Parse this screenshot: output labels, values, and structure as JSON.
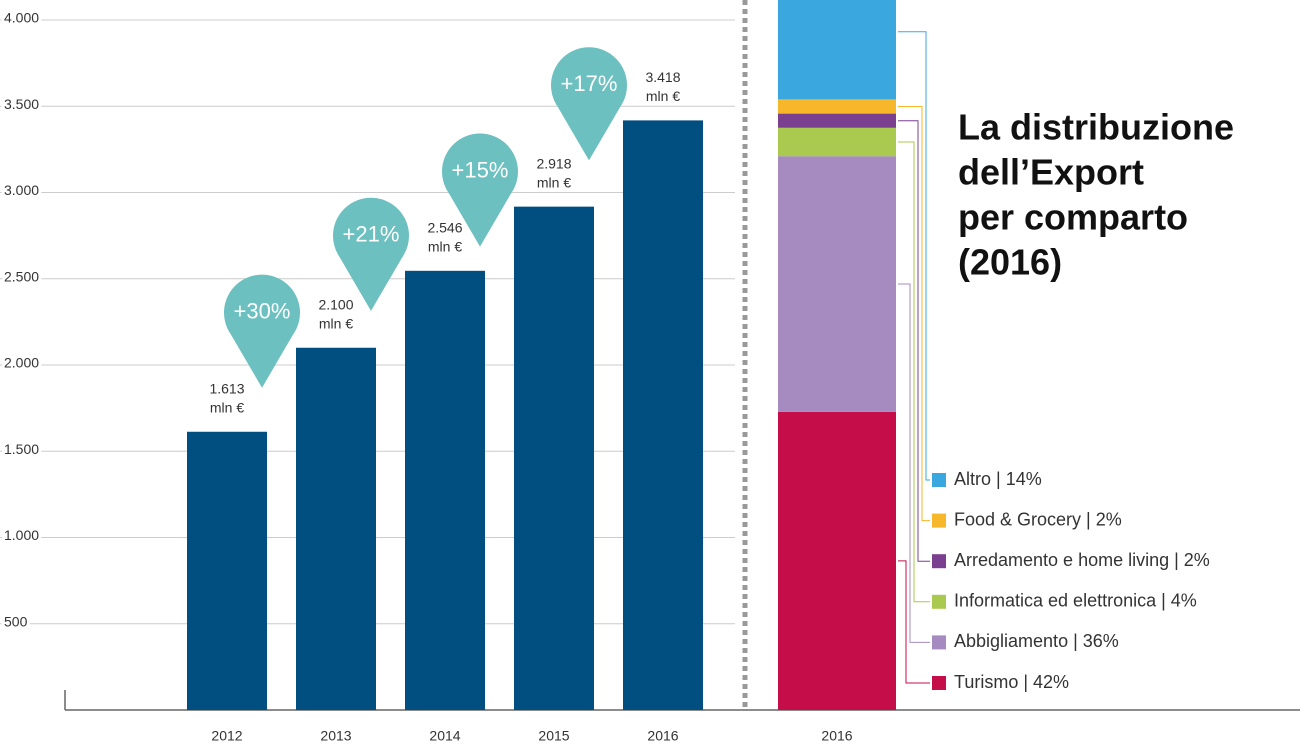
{
  "chart_data": [
    {
      "type": "bar",
      "categories": [
        "2012",
        "2013",
        "2014",
        "2015",
        "2016"
      ],
      "values": [
        1613,
        2100,
        2546,
        2918,
        3418
      ],
      "value_labels": [
        [
          "1.613",
          "mln €"
        ],
        [
          "2.100",
          "mln €"
        ],
        [
          "2.546",
          "mln €"
        ],
        [
          "2.918",
          "mln €"
        ],
        [
          "3.418",
          "mln €"
        ]
      ],
      "annotations": [
        "+30%",
        "+21%",
        "+15%",
        "+17%"
      ],
      "color": "#004f80",
      "annotation_color": "#6cc0bf",
      "ylim": [
        0,
        4000
      ],
      "yticks": [
        500,
        {
          "value": 1000,
          "label": "1.000"
        },
        {
          "value": 1500,
          "label": "1.500"
        },
        {
          "value": 2000,
          "label": "2.000"
        },
        {
          "value": 2500,
          "label": "2.500"
        },
        {
          "value": 3000,
          "label": "3.000"
        },
        {
          "value": 3500,
          "label": "3.500"
        },
        {
          "value": 4000,
          "label": "4.000"
        }
      ],
      "grid": true
    },
    {
      "type": "stacked_bar",
      "title": [
        "La distribuzione",
        "dell’Export",
        "per comparto",
        "(2016)"
      ],
      "categories": [
        "2016"
      ],
      "ylim": [
        0,
        100
      ],
      "series": [
        {
          "name": "Turismo | 42%",
          "color": "#c50d49",
          "values": [
            42
          ]
        },
        {
          "name": "Abbigliamento | 36%",
          "color": "#a68bc1",
          "values": [
            36
          ]
        },
        {
          "name": "Informatica ed elettronica | 4%",
          "color": "#a9c94f",
          "values": [
            4
          ]
        },
        {
          "name": "Arredamento e home living | 2%",
          "color": "#7b3f8f",
          "values": [
            2
          ]
        },
        {
          "name": "Food & Grocery | 2%",
          "color": "#f6b72b",
          "values": [
            2
          ]
        },
        {
          "name": "Altro | 14%",
          "color": "#3aa8df",
          "values": [
            14
          ]
        }
      ]
    }
  ]
}
